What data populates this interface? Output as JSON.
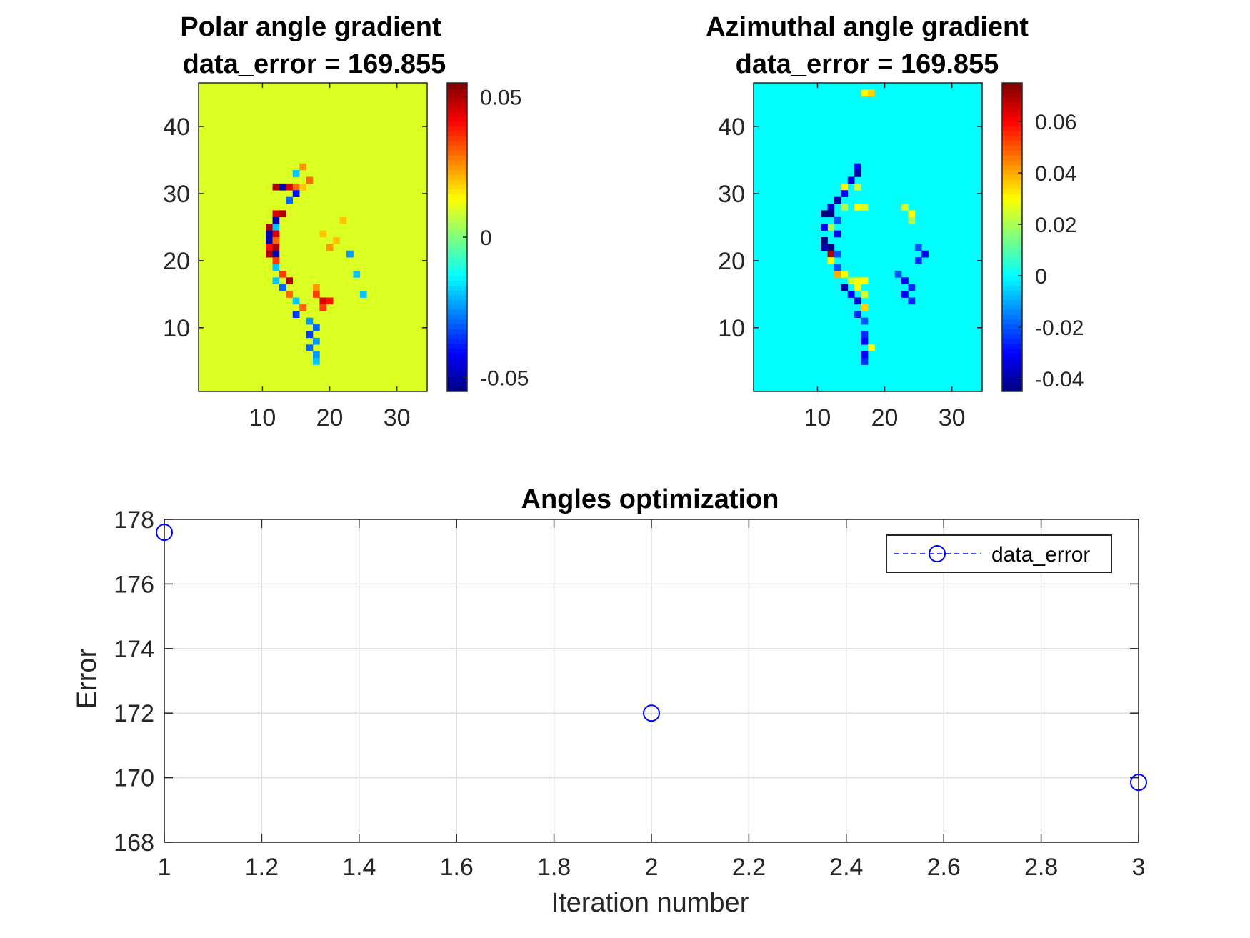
{
  "chart_data": [
    {
      "type": "heatmap",
      "title_line1": "Polar angle gradient",
      "title_line2": "data_error = 169.855",
      "xlim": [
        0.5,
        34.5
      ],
      "ylim": [
        0.5,
        46.5
      ],
      "xticks": [
        "10",
        "20",
        "30"
      ],
      "yticks": [
        "10",
        "20",
        "30",
        "40"
      ],
      "colormap": "jet",
      "clim": [
        -0.055,
        0.055
      ],
      "colorbar_ticks": [
        "-0.05",
        "0",
        "0.05"
      ],
      "background_value": 0.01,
      "cells": [
        [
          12,
          31,
          0.05
        ],
        [
          13,
          31,
          -0.05
        ],
        [
          14,
          31,
          0.045
        ],
        [
          15,
          31,
          0.03
        ],
        [
          16,
          31,
          0.02
        ],
        [
          15,
          33,
          -0.02
        ],
        [
          16,
          34,
          0.025
        ],
        [
          17,
          32,
          0.03
        ],
        [
          15,
          30,
          -0.04
        ],
        [
          12,
          27,
          0.045
        ],
        [
          13,
          27,
          0.05
        ],
        [
          14,
          29,
          -0.03
        ],
        [
          12,
          26,
          -0.05
        ],
        [
          11,
          25,
          0.05
        ],
        [
          12,
          25,
          -0.02
        ],
        [
          11,
          24,
          -0.05
        ],
        [
          12,
          24,
          0.045
        ],
        [
          11,
          23,
          -0.05
        ],
        [
          12,
          23,
          0.03
        ],
        [
          11,
          22,
          0.04
        ],
        [
          12,
          22,
          0.05
        ],
        [
          11,
          21,
          0.05
        ],
        [
          12,
          21,
          -0.05
        ],
        [
          12,
          20,
          0.035
        ],
        [
          12,
          19,
          -0.02
        ],
        [
          13,
          18,
          0.035
        ],
        [
          14,
          17,
          0.05
        ],
        [
          12,
          17,
          -0.02
        ],
        [
          13,
          16,
          -0.03
        ],
        [
          14,
          15,
          0.03
        ],
        [
          15,
          14,
          -0.02
        ],
        [
          16,
          13,
          0.03
        ],
        [
          15,
          12,
          -0.035
        ],
        [
          18,
          15,
          0.035
        ],
        [
          19,
          14,
          0.045
        ],
        [
          20,
          14,
          0.04
        ],
        [
          19,
          13,
          0.035
        ],
        [
          18,
          16,
          0.025
        ],
        [
          17,
          11,
          -0.025
        ],
        [
          18,
          10,
          -0.03
        ],
        [
          17,
          9,
          -0.035
        ],
        [
          18,
          8,
          -0.025
        ],
        [
          17,
          7,
          -0.03
        ],
        [
          18,
          6,
          -0.025
        ],
        [
          18,
          5,
          -0.02
        ],
        [
          23,
          21,
          -0.025
        ],
        [
          24,
          18,
          -0.02
        ],
        [
          25,
          15,
          -0.02
        ],
        [
          22,
          26,
          0.02
        ],
        [
          20,
          22,
          0.025
        ],
        [
          21,
          23,
          0.02
        ],
        [
          19,
          24,
          0.02
        ]
      ]
    },
    {
      "type": "heatmap",
      "title_line1": "Azimuthal angle gradient",
      "title_line2": "data_error = 169.855",
      "xlim": [
        0.5,
        34.5
      ],
      "ylim": [
        0.5,
        46.5
      ],
      "xticks": [
        "10",
        "20",
        "30"
      ],
      "yticks": [
        "10",
        "20",
        "30",
        "40"
      ],
      "colormap": "jet",
      "clim": [
        -0.045,
        0.075
      ],
      "colorbar_ticks": [
        "-0.04",
        "-0.02",
        "0",
        "0.02",
        "0.04",
        "0.06"
      ],
      "background_value": 0.0,
      "cells": [
        [
          17,
          45,
          0.03
        ],
        [
          18,
          45,
          0.035
        ],
        [
          16,
          34,
          -0.03
        ],
        [
          16,
          33,
          -0.04
        ],
        [
          15,
          32,
          -0.035
        ],
        [
          16,
          31,
          0.025
        ],
        [
          14,
          31,
          0.03
        ],
        [
          14,
          30,
          -0.03
        ],
        [
          13,
          29,
          -0.04
        ],
        [
          12,
          28,
          -0.035
        ],
        [
          14,
          28,
          0.02
        ],
        [
          16,
          28,
          0.03
        ],
        [
          17,
          28,
          0.025
        ],
        [
          12,
          27,
          -0.045
        ],
        [
          11,
          27,
          -0.045
        ],
        [
          13,
          26,
          -0.02
        ],
        [
          12,
          25,
          0.02
        ],
        [
          11,
          25,
          -0.03
        ],
        [
          13,
          24,
          -0.03
        ],
        [
          11,
          23,
          -0.045
        ],
        [
          11,
          22,
          -0.04
        ],
        [
          12,
          22,
          -0.045
        ],
        [
          12,
          21,
          0.07
        ],
        [
          13,
          21,
          -0.02
        ],
        [
          12,
          20,
          0.03
        ],
        [
          13,
          19,
          -0.02
        ],
        [
          13,
          18,
          0.04
        ],
        [
          14,
          18,
          0.03
        ],
        [
          15,
          17,
          0.025
        ],
        [
          16,
          17,
          0.03
        ],
        [
          17,
          17,
          0.03
        ],
        [
          14,
          16,
          -0.04
        ],
        [
          16,
          16,
          0.03
        ],
        [
          15,
          15,
          -0.03
        ],
        [
          17,
          15,
          0.025
        ],
        [
          16,
          14,
          -0.035
        ],
        [
          17,
          13,
          0.035
        ],
        [
          16,
          12,
          -0.025
        ],
        [
          17,
          11,
          -0.02
        ],
        [
          17,
          9,
          -0.025
        ],
        [
          17,
          8,
          -0.03
        ],
        [
          18,
          7,
          0.03
        ],
        [
          17,
          6,
          -0.03
        ],
        [
          17,
          5,
          -0.025
        ],
        [
          23,
          28,
          0.025
        ],
        [
          24,
          27,
          0.03
        ],
        [
          24,
          26,
          0.02
        ],
        [
          25,
          22,
          -0.02
        ],
        [
          26,
          21,
          -0.03
        ],
        [
          25,
          20,
          -0.025
        ],
        [
          22,
          18,
          -0.02
        ],
        [
          23,
          17,
          -0.03
        ],
        [
          24,
          16,
          -0.025
        ],
        [
          23,
          15,
          -0.03
        ],
        [
          24,
          14,
          -0.025
        ]
      ]
    },
    {
      "type": "line",
      "title": "Angles optimization",
      "xlabel": "Iteration number",
      "ylabel": "Error",
      "xlim": [
        1,
        3
      ],
      "ylim": [
        168,
        178
      ],
      "xticks": [
        "1",
        "1.2",
        "1.4",
        "1.6",
        "1.8",
        "2",
        "2.2",
        "2.4",
        "2.6",
        "2.8",
        "3"
      ],
      "yticks": [
        "168",
        "170",
        "172",
        "174",
        "176",
        "178"
      ],
      "grid": true,
      "legend_location": "top-right",
      "series": [
        {
          "name": "data_error",
          "x": [
            1,
            2,
            3
          ],
          "y": [
            177.6,
            172.0,
            169.855
          ],
          "color": "#0000ff",
          "line_style": "dashed",
          "marker": "circle"
        }
      ]
    }
  ]
}
